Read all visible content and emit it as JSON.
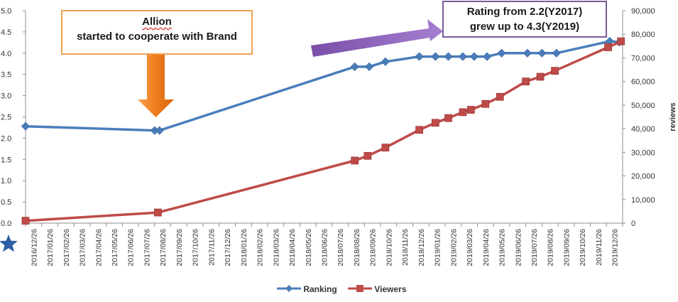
{
  "chart_data": {
    "type": "line",
    "categories": [
      "2016/12/26",
      "2017/01/26",
      "2017/02/26",
      "2017/03/26",
      "2017/04/26",
      "2017/05/26",
      "2017/06/26",
      "2017/07/26",
      "2017/08/26",
      "2017/09/26",
      "2017/10/26",
      "2017/11/26",
      "2017/12/26",
      "2018/01/26",
      "2018/02/26",
      "2018/03/26",
      "2018/04/26",
      "2018/05/26",
      "2018/06/26",
      "2018/07/26",
      "2018/08/26",
      "2018/09/26",
      "2018/10/26",
      "2018/11/26",
      "2018/12/26",
      "2019/01/26",
      "2019/02/26",
      "2019/03/26",
      "2019/04/26",
      "2019/05/26",
      "2019/06/26",
      "2019/07/26",
      "2019/08/26",
      "2019/09/26",
      "2019/10/26",
      "2019/11/26",
      "2019/12/26"
    ],
    "left_axis": {
      "ticks": [
        "0.0",
        "0.5",
        "1.0",
        "1.5",
        "2.0",
        "2.5",
        "3.0",
        "3.5",
        "4.0",
        "4.5",
        "5.0"
      ],
      "ylim": [
        0,
        5
      ]
    },
    "right_axis": {
      "label": "reviews",
      "ticks": [
        "0",
        "10,000",
        "20,000",
        "30,000",
        "40,000",
        "50,000",
        "60,000",
        "70,000",
        "80,000",
        "90,000"
      ],
      "ylim": [
        0,
        90000
      ]
    },
    "series": [
      {
        "name": "Ranking",
        "axis": "left",
        "color": "#4a7ebb",
        "marker": "diamond",
        "points": [
          {
            "x": 0,
            "y": 2.28
          },
          {
            "x": 8,
            "y": 2.18
          },
          {
            "x": 8.3,
            "y": 2.18
          },
          {
            "x": 20.4,
            "y": 3.68
          },
          {
            "x": 21.3,
            "y": 3.68
          },
          {
            "x": 22.3,
            "y": 3.8
          },
          {
            "x": 24.4,
            "y": 3.92
          },
          {
            "x": 25.4,
            "y": 3.92
          },
          {
            "x": 26.2,
            "y": 3.92
          },
          {
            "x": 27.1,
            "y": 3.92
          },
          {
            "x": 27.8,
            "y": 3.92
          },
          {
            "x": 28.6,
            "y": 3.92
          },
          {
            "x": 29.5,
            "y": 4.0
          },
          {
            "x": 31.1,
            "y": 4.0
          },
          {
            "x": 32.0,
            "y": 4.0
          },
          {
            "x": 32.9,
            "y": 4.0
          },
          {
            "x": 36.2,
            "y": 4.28
          },
          {
            "x": 36.8,
            "y": 4.26
          }
        ]
      },
      {
        "name": "Viewers",
        "axis": "right",
        "color": "#be4b48",
        "marker": "square",
        "points": [
          {
            "x": 0,
            "y": 1000
          },
          {
            "x": 8.2,
            "y": 4500
          },
          {
            "x": 20.4,
            "y": 26500
          },
          {
            "x": 21.2,
            "y": 28500
          },
          {
            "x": 22.3,
            "y": 32000
          },
          {
            "x": 24.4,
            "y": 39500
          },
          {
            "x": 25.4,
            "y": 42500
          },
          {
            "x": 26.2,
            "y": 44500
          },
          {
            "x": 27.1,
            "y": 47000
          },
          {
            "x": 27.6,
            "y": 48000
          },
          {
            "x": 28.5,
            "y": 50500
          },
          {
            "x": 29.4,
            "y": 53500
          },
          {
            "x": 31.0,
            "y": 60000
          },
          {
            "x": 31.9,
            "y": 62000
          },
          {
            "x": 32.8,
            "y": 64500
          },
          {
            "x": 36.1,
            "y": 74500
          },
          {
            "x": 36.9,
            "y": 77000
          }
        ]
      }
    ],
    "annotations": {
      "allion_line1": "Allion",
      "allion_line2": "started to cooperate with Brand",
      "rating_line1": "Rating from 2.2(Y2017)",
      "rating_line2": "grew up to 4.3(Y2019)"
    },
    "grid": false,
    "legend": "bottom-center",
    "colors": {
      "down_arrow": "#ee7d1e",
      "purple_arrow": "#8a5cb8",
      "star": "#2e5fa3"
    }
  }
}
